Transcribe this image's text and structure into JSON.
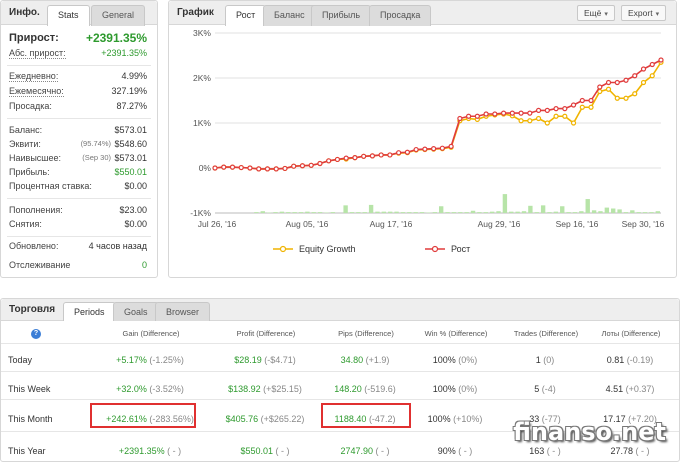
{
  "info": {
    "title": "Инфо.",
    "tabs": [
      "Stats",
      "General"
    ],
    "growth_label": "Прирост:",
    "growth_value": "+2391.35%",
    "abs_label": "Абс. прирост:",
    "abs_value": "+2391.35%",
    "daily_label": "Ежедневно:",
    "daily_value": "4.99%",
    "monthly_label": "Ежемесячно:",
    "monthly_value": "327.19%",
    "drawdown_label": "Просадка:",
    "drawdown_value": "87.27%",
    "balance_label": "Баланс:",
    "balance_value": "$573.01",
    "equity_label": "Эквити:",
    "equity_sub": "(95.74%)",
    "equity_value": "$548.60",
    "highest_label": "Наивысшее:",
    "highest_sub": "(Sep 30)",
    "highest_value": "$573.01",
    "profit_label": "Прибыль:",
    "profit_value": "$550.01",
    "interest_label": "Процентная ставка:",
    "interest_value": "$0.00",
    "deposits_label": "Пополнения:",
    "deposits_value": "$23.00",
    "withdrawals_label": "Снятия:",
    "withdrawals_value": "$0.00",
    "updated_label": "Обновлено:",
    "updated_value": "4 часов назад",
    "tracking_label": "Отслеживание",
    "tracking_value": "0"
  },
  "chart_panel": {
    "title": "График",
    "tabs": [
      "Рост",
      "Баланс",
      "Прибыль",
      "Просадка"
    ],
    "more_button": "Ещё",
    "export_button": "Export"
  },
  "chart_data": {
    "type": "line",
    "x_ticks": [
      "Jul 26, '16",
      "Aug 05, '16",
      "Aug 17, '16",
      "Aug 29, '16",
      "Sep 16, '16",
      "Sep 30, '16"
    ],
    "y_ticks": [
      "3K%",
      "2K%",
      "1K%",
      "0%",
      "-1K%"
    ],
    "ylim": [
      -1000,
      3000
    ],
    "legend_position": "bottom",
    "grid": "horizontal",
    "series": [
      {
        "name": "Equity Growth",
        "color": "#f0b400",
        "values": [
          0,
          20,
          20,
          10,
          0,
          -20,
          -20,
          -20,
          -10,
          40,
          50,
          60,
          100,
          160,
          190,
          200,
          230,
          260,
          270,
          290,
          290,
          330,
          340,
          400,
          410,
          420,
          430,
          460,
          1050,
          1100,
          1080,
          1150,
          1180,
          1200,
          1160,
          1050,
          1050,
          1100,
          1000,
          1150,
          1150,
          1000,
          1350,
          1350,
          1700,
          1750,
          1550,
          1550,
          1650,
          1900,
          2050,
          2350
        ]
      },
      {
        "name": "Рост",
        "color": "#e03c3c",
        "values": [
          0,
          20,
          20,
          10,
          0,
          -20,
          -20,
          -20,
          -10,
          40,
          50,
          60,
          100,
          160,
          190,
          220,
          230,
          260,
          270,
          290,
          290,
          340,
          350,
          410,
          420,
          430,
          440,
          480,
          1100,
          1150,
          1150,
          1200,
          1200,
          1220,
          1220,
          1220,
          1220,
          1280,
          1280,
          1320,
          1320,
          1400,
          1500,
          1500,
          1800,
          1900,
          1900,
          1950,
          2050,
          2200,
          2300,
          2400
        ]
      }
    ],
    "bars": [
      0,
      0,
      0,
      0,
      0,
      0,
      20,
      40,
      10,
      20,
      30,
      20,
      20,
      20,
      30,
      20,
      20,
      10,
      20,
      0,
      170,
      20,
      20,
      20,
      180,
      30,
      30,
      30,
      30,
      20,
      20,
      20,
      20,
      10,
      20,
      150,
      20,
      20,
      20,
      20,
      50,
      20,
      20,
      30,
      40,
      420,
      30,
      30,
      40,
      160,
      20,
      170,
      20,
      30,
      150,
      20,
      20,
      40,
      310,
      60,
      40,
      120,
      100,
      80,
      20,
      60,
      20,
      20,
      20,
      40
    ]
  },
  "legend": {
    "equity_label": "Equity Growth",
    "growth_label": "Рост"
  },
  "trade": {
    "title": "Торговля",
    "tabs": [
      "Periods",
      "Goals",
      "Browser"
    ],
    "headers": [
      "Gain (Difference)",
      "Profit (Difference)",
      "Pips (Difference)",
      "Win % (Difference)",
      "Trades (Difference)",
      "Лоты (Difference)"
    ],
    "rows": [
      {
        "label": "Today",
        "gain": "+5.17%",
        "gain_d": "(-1.25%)",
        "profit": "$28.19",
        "profit_d": "(-$4.71)",
        "pips": "34.80",
        "pips_d": "(+1.9)",
        "win": "100%",
        "win_d": "(0%)",
        "trades": "1",
        "trades_d": "(0)",
        "lots": "0.81",
        "lots_d": "(-0.19)"
      },
      {
        "label": "This Week",
        "gain": "+32.0%",
        "gain_d": "(-3.52%)",
        "profit": "$138.92",
        "profit_d": "(+$25.15)",
        "pips": "148.20",
        "pips_d": "(-519.6)",
        "win": "100%",
        "win_d": "(0%)",
        "trades": "5",
        "trades_d": "(-4)",
        "lots": "4.51",
        "lots_d": "(+0.37)"
      },
      {
        "label": "This Month",
        "gain": "+242.61%",
        "gain_d": "(-283.56%)",
        "profit": "$405.76",
        "profit_d": "(+$265.22)",
        "pips": "1188.40",
        "pips_d": "(-47.2)",
        "win": "100%",
        "win_d": "(+10%)",
        "trades": "33",
        "trades_d": "(-77)",
        "lots": "17.17",
        "lots_d": "(+7.20)"
      },
      {
        "label": "This Year",
        "gain": "+2391.35%",
        "gain_d": "( - )",
        "profit": "$550.01",
        "profit_d": "( - )",
        "pips": "2747.90",
        "pips_d": "( - )",
        "win": "90%",
        "win_d": "( - )",
        "trades": "163",
        "trades_d": "( - )",
        "lots": "27.78",
        "lots_d": "( - )"
      }
    ]
  },
  "watermark": "finanso.net"
}
